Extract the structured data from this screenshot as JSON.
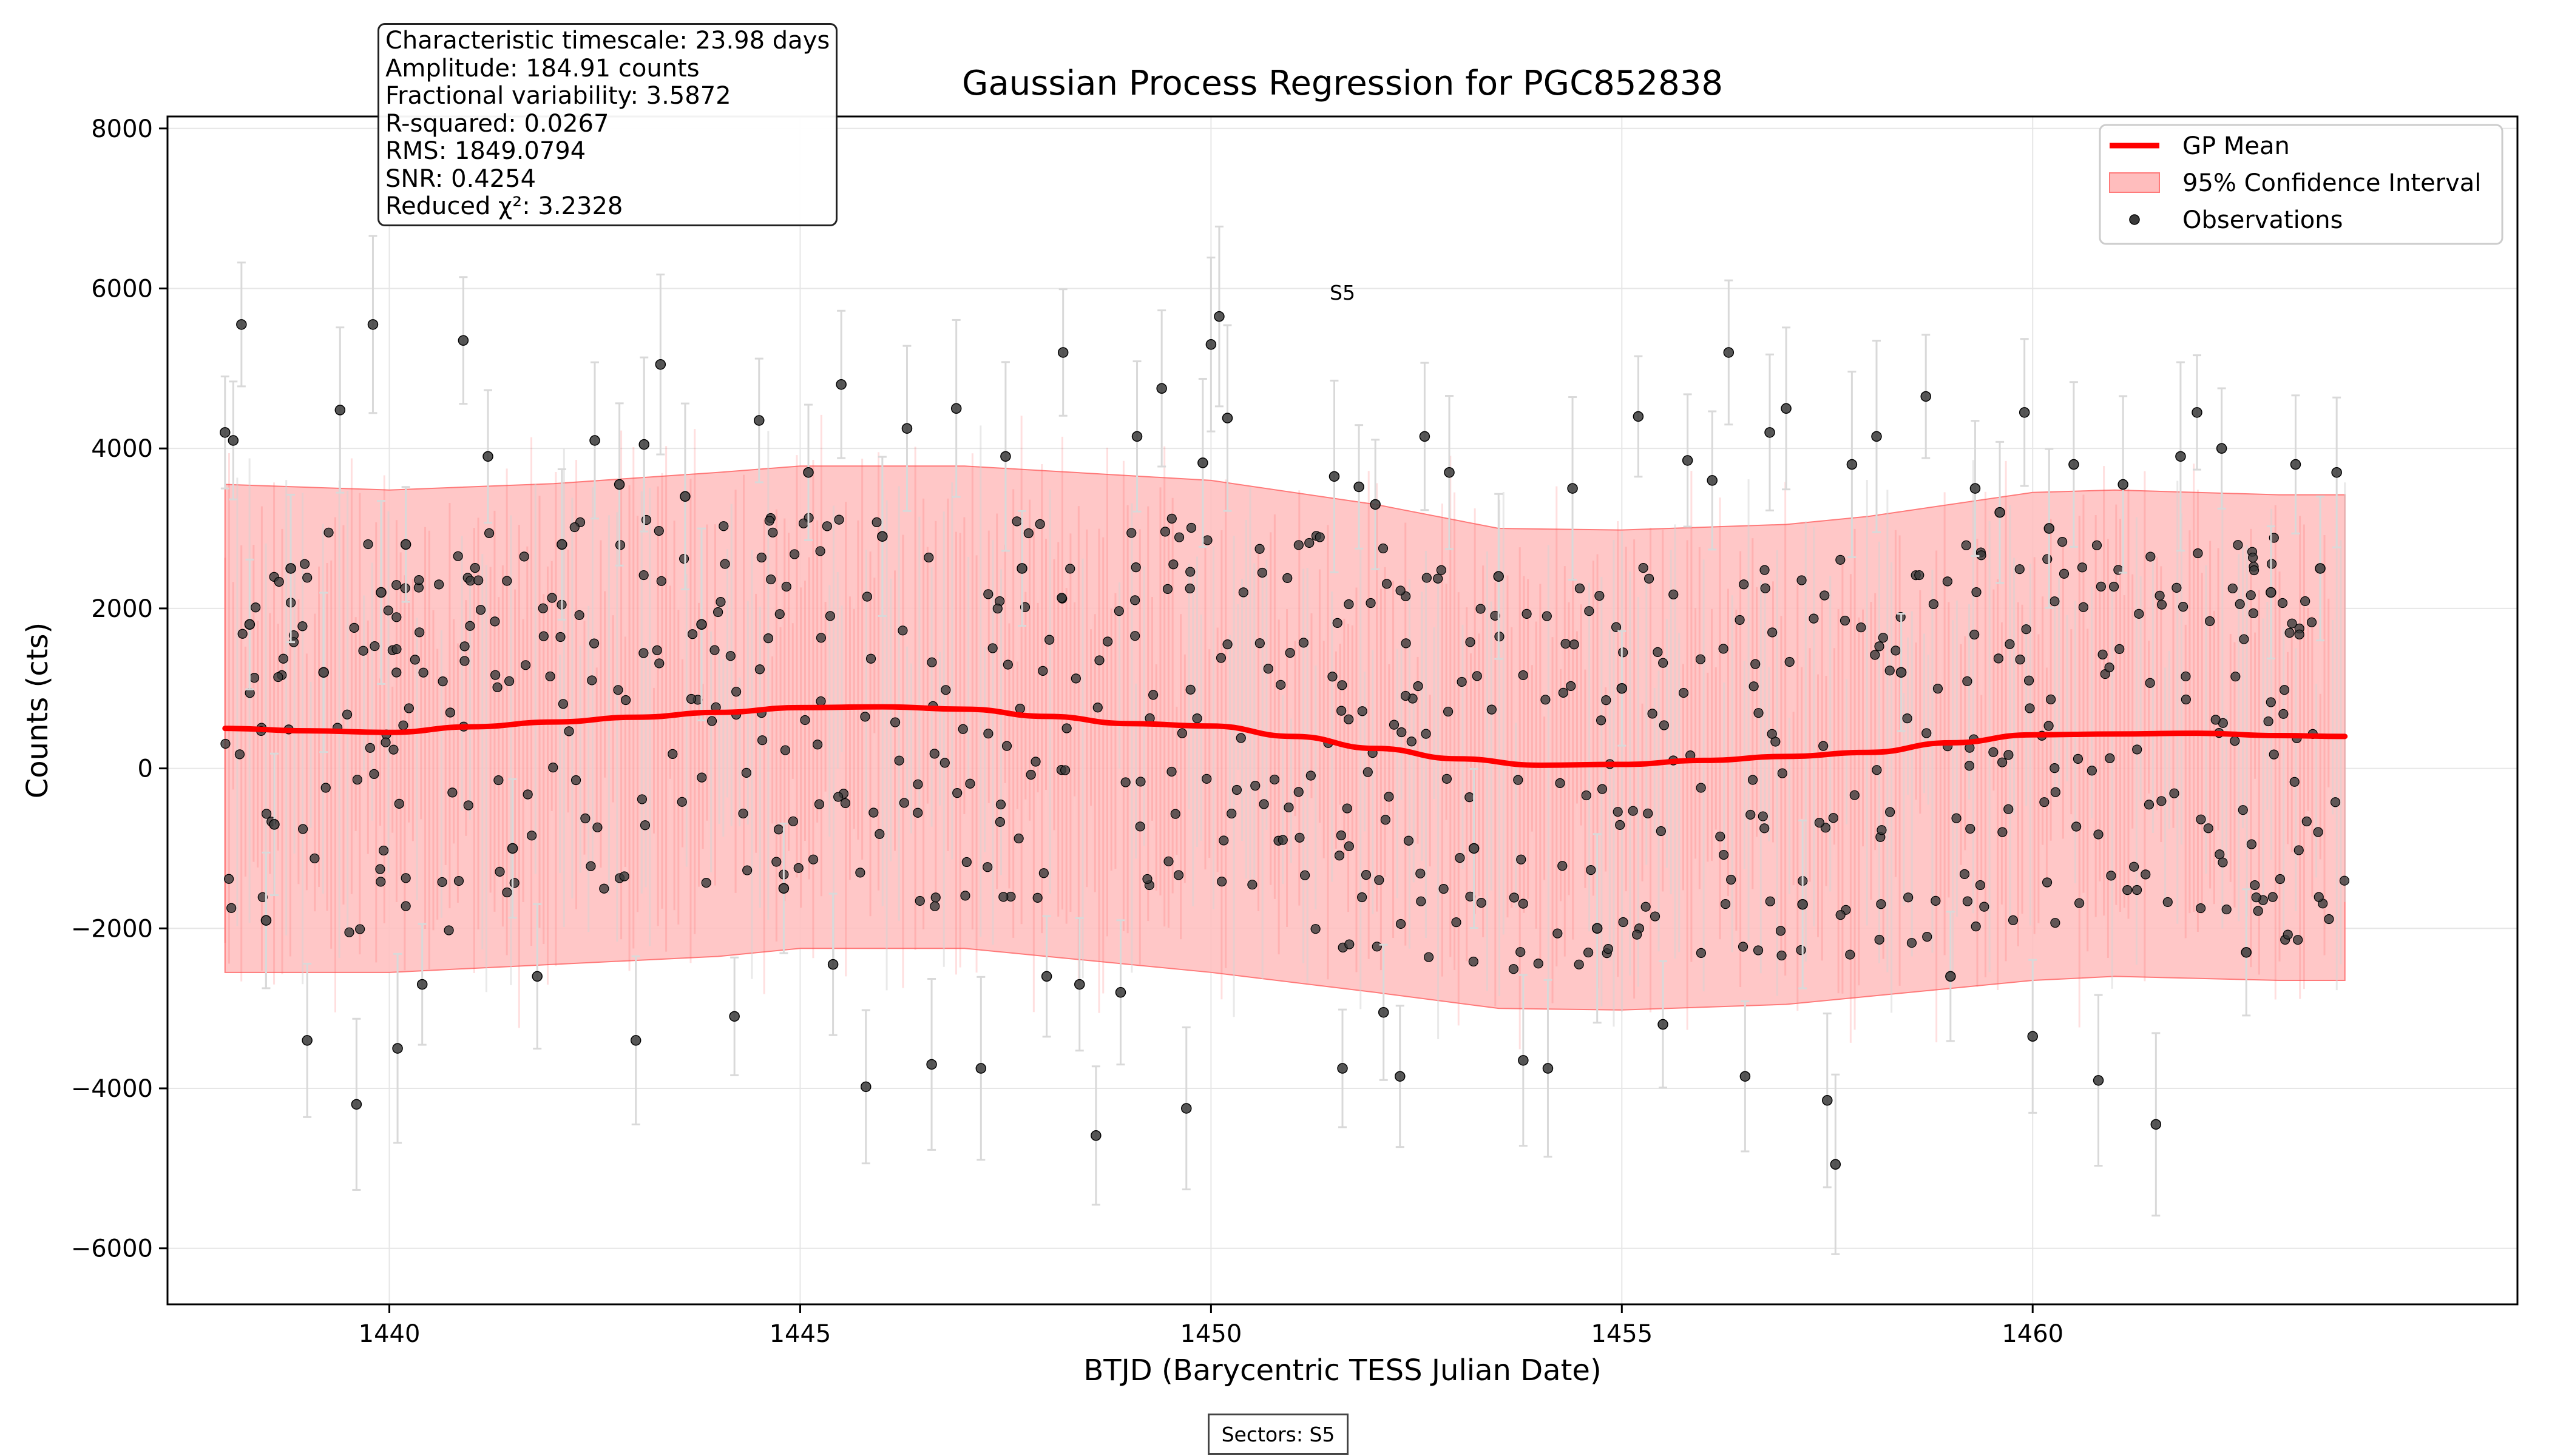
{
  "chart_data": {
    "type": "scatter",
    "title": "Gaussian Process Regression for PGC852838",
    "xlabel": "BTJD (Barycentric TESS Julian Date)",
    "ylabel": "Counts (cts)",
    "xlim": [
      1437.3,
      1465.9
    ],
    "ylim": [
      -6700,
      8150
    ],
    "x_ticks": [
      1440,
      1445,
      1450,
      1455,
      1460
    ],
    "y_ticks": [
      -6000,
      -4000,
      -2000,
      0,
      2000,
      4000,
      6000,
      8000
    ],
    "x_tick_labels": [
      "1440",
      "1445",
      "1450",
      "1455",
      "1460"
    ],
    "y_tick_labels": [
      "−6000",
      "−4000",
      "−2000",
      "0",
      "2000",
      "4000",
      "6000",
      "8000"
    ],
    "grid": true,
    "legend_position": "top-right",
    "legend": [
      "GP Mean",
      "95% Confidence Interval",
      "Observations"
    ],
    "sector_label": "S5",
    "sector_label_x": 1451.6,
    "sector_label_y": 5950,
    "gp_mean": {
      "x": [
        1438.0,
        1439.0,
        1440.0,
        1441.0,
        1442.0,
        1443.0,
        1444.0,
        1445.0,
        1446.0,
        1447.0,
        1448.0,
        1449.0,
        1450.0,
        1451.0,
        1452.0,
        1453.0,
        1454.0,
        1455.0,
        1456.0,
        1457.0,
        1458.0,
        1459.0,
        1460.0,
        1461.0,
        1462.0,
        1463.0,
        1463.8
      ],
      "y": [
        500,
        470,
        450,
        520,
        580,
        640,
        700,
        760,
        770,
        740,
        650,
        560,
        530,
        400,
        250,
        120,
        40,
        50,
        100,
        150,
        200,
        320,
        420,
        430,
        440,
        410,
        400
      ]
    },
    "ci_upper": {
      "x": [
        1438.0,
        1440.0,
        1442.0,
        1444.0,
        1445.0,
        1447.0,
        1448.0,
        1450.0,
        1452.0,
        1453.5,
        1455.0,
        1457.0,
        1458.0,
        1460.0,
        1461.0,
        1463.0,
        1463.8
      ],
      "y": [
        3550,
        3480,
        3560,
        3700,
        3780,
        3780,
        3720,
        3600,
        3300,
        3000,
        2980,
        3050,
        3150,
        3450,
        3480,
        3420,
        3420
      ]
    },
    "ci_lower": {
      "x": [
        1438.0,
        1440.0,
        1442.0,
        1444.0,
        1445.0,
        1447.0,
        1448.0,
        1450.0,
        1452.0,
        1453.5,
        1455.0,
        1457.0,
        1458.0,
        1460.0,
        1461.0,
        1463.0,
        1463.8
      ],
      "y": [
        -2550,
        -2550,
        -2450,
        -2350,
        -2250,
        -2250,
        -2350,
        -2550,
        -2800,
        -3000,
        -3020,
        -2950,
        -2850,
        -2650,
        -2600,
        -2650,
        -2650
      ]
    },
    "observations": {
      "x": [
        1438.0,
        1438.1,
        1438.2,
        1438.3,
        1438.5,
        1438.6,
        1438.8,
        1439.0,
        1439.2,
        1439.4,
        1439.6,
        1439.8,
        1439.9,
        1440.1,
        1440.2,
        1440.4,
        1440.9,
        1441.2,
        1441.5,
        1441.8,
        1442.1,
        1442.5,
        1442.8,
        1443.0,
        1443.1,
        1443.3,
        1443.6,
        1443.8,
        1444.2,
        1444.5,
        1444.8,
        1445.1,
        1445.4,
        1445.5,
        1445.8,
        1446.0,
        1446.3,
        1446.6,
        1446.9,
        1447.2,
        1447.5,
        1447.7,
        1448.0,
        1448.2,
        1448.4,
        1448.6,
        1448.9,
        1449.1,
        1449.4,
        1449.7,
        1449.9,
        1450.0,
        1450.1,
        1450.2,
        1451.5,
        1451.6,
        1451.8,
        1452.0,
        1452.1,
        1452.3,
        1452.6,
        1452.9,
        1453.2,
        1453.5,
        1453.8,
        1454.1,
        1454.4,
        1454.7,
        1455.0,
        1455.2,
        1455.5,
        1455.8,
        1456.1,
        1456.3,
        1456.5,
        1456.8,
        1457.0,
        1457.2,
        1457.5,
        1457.6,
        1457.8,
        1458.1,
        1458.4,
        1458.7,
        1459.0,
        1459.3,
        1459.6,
        1459.9,
        1460.0,
        1460.2,
        1460.5,
        1460.8,
        1461.1,
        1461.5,
        1461.8,
        1462.0,
        1462.3,
        1462.6,
        1462.9,
        1463.2,
        1463.5,
        1463.7
      ],
      "y": [
        4200,
        4100,
        5550,
        1800,
        -1900,
        -700,
        2500,
        -3400,
        1200,
        4480,
        -4200,
        5550,
        2200,
        -3500,
        2800,
        -2700,
        5350,
        3900,
        -1000,
        -2600,
        2800,
        4100,
        3550,
        -3400,
        4050,
        5050,
        3400,
        1800,
        -3100,
        4350,
        -1500,
        3700,
        -2450,
        4800,
        -3980,
        2900,
        4250,
        -3700,
        4500,
        -3750,
        3900,
        2500,
        -2600,
        5200,
        -2700,
        -4590,
        -2800,
        4150,
        4750,
        -4250,
        3820,
        5300,
        5650,
        4380,
        3650,
        -3750,
        3520,
        3300,
        -3050,
        -3850,
        4150,
        3700,
        -1000,
        2400,
        -3650,
        -3750,
        3500,
        -2000,
        1000,
        4400,
        -3200,
        3850,
        3600,
        5200,
        -3850,
        4200,
        4500,
        -1700,
        -4150,
        -4950,
        3800,
        4150,
        1200,
        4650,
        -2600,
        3500,
        3200,
        4450,
        -3350,
        3000,
        3800,
        -3900,
        3550,
        -4450,
        3900,
        4450,
        4000,
        -2300,
        2200,
        3800,
        2500,
        3700
      ]
    },
    "stats": [
      "Characteristic timescale: 23.98 days",
      "Amplitude: 184.91 counts",
      "Fractional variability: 3.5872",
      "R-squared: 0.0267",
      "RMS: 1849.0794",
      "SNR: 0.4254",
      "Reduced χ²: 3.2328"
    ],
    "sectors_text": "Sectors: S5"
  },
  "colors": {
    "gp_mean": "#ff0000",
    "confidence_fill": "#ffbdbd",
    "confidence_edge": "#ff7a7a",
    "observation": "#3a3a3a",
    "errorbar": "#d9d9d9",
    "grid": "#e6e6e6"
  }
}
